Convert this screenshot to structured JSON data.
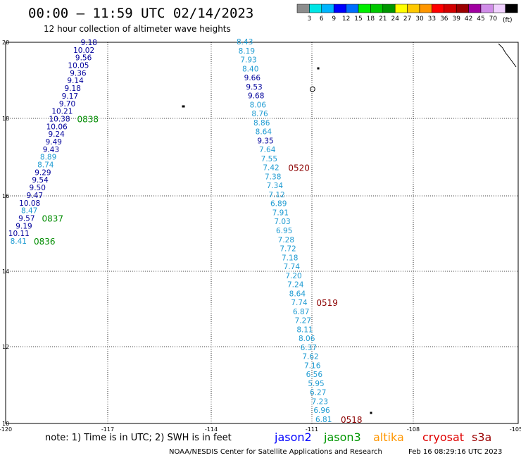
{
  "header": {
    "title": "00:00 – 11:59 UTC 02/14/2023",
    "subtitle": "12 hour collection of altimeter wave heights"
  },
  "legend": {
    "unit": "(ft)",
    "colors": [
      "#8c8c8c",
      "#00e5e5",
      "#00b4ff",
      "#0000ff",
      "#006eff",
      "#00ee00",
      "#00c800",
      "#009600",
      "#ffff00",
      "#ffc800",
      "#ff9600",
      "#ff0000",
      "#d20000",
      "#9b0000",
      "#a000a0",
      "#d08ce8",
      "#f0d0ff",
      "#000000"
    ],
    "labels": [
      "3",
      "6",
      "9",
      "12",
      "15",
      "18",
      "21",
      "24",
      "27",
      "30",
      "33",
      "36",
      "39",
      "42",
      "45",
      "70"
    ]
  },
  "map": {
    "lon_labels": [
      "-120",
      "-117",
      "-114",
      "-111",
      "-108",
      "-105"
    ],
    "lat_labels": [
      "20",
      "18",
      "16",
      "14",
      "12",
      "10"
    ]
  },
  "tracks": [
    {
      "name": "track-west",
      "values": [
        {
          "v": "9.18",
          "c": "#00009b"
        },
        {
          "v": "10.02",
          "c": "#00009b"
        },
        {
          "v": "9.56",
          "c": "#00009b"
        },
        {
          "v": "10.05",
          "c": "#00009b"
        },
        {
          "v": "9.36",
          "c": "#00009b"
        },
        {
          "v": "9.14",
          "c": "#00009b"
        },
        {
          "v": "9.18",
          "c": "#00009b"
        },
        {
          "v": "9.17",
          "c": "#00009b"
        },
        {
          "v": "9.70",
          "c": "#00009b"
        },
        {
          "v": "10.21",
          "c": "#00009b"
        },
        {
          "v": "10.38",
          "c": "#00009b"
        },
        {
          "v": "10.06",
          "c": "#00009b"
        },
        {
          "v": "9.24",
          "c": "#00009b"
        },
        {
          "v": "9.49",
          "c": "#00009b"
        },
        {
          "v": "9.43",
          "c": "#00009b"
        },
        {
          "v": "8.89",
          "c": "#1e9bd2"
        },
        {
          "v": "8.74",
          "c": "#1e9bd2"
        },
        {
          "v": "9.29",
          "c": "#00009b"
        },
        {
          "v": "9.54",
          "c": "#00009b"
        },
        {
          "v": "9.50",
          "c": "#00009b"
        },
        {
          "v": "9.47",
          "c": "#00009b"
        },
        {
          "v": "10.08",
          "c": "#00009b"
        },
        {
          "v": "8.47",
          "c": "#1e9bd2"
        },
        {
          "v": "9.57",
          "c": "#00009b"
        },
        {
          "v": "9.19",
          "c": "#00009b"
        },
        {
          "v": "10.11",
          "c": "#00009b"
        },
        {
          "v": "8.41",
          "c": "#1e9bd2"
        }
      ],
      "times": [
        {
          "t": "0838",
          "i": 10
        },
        {
          "t": "0837",
          "i": 23
        },
        {
          "t": "0836",
          "i": 26
        }
      ]
    },
    {
      "name": "track-east",
      "values": [
        {
          "v": "8.43",
          "c": "#1e9bd2"
        },
        {
          "v": "8.19",
          "c": "#1e9bd2"
        },
        {
          "v": "7.93",
          "c": "#1e9bd2"
        },
        {
          "v": "8.40",
          "c": "#1e9bd2"
        },
        {
          "v": "9.66",
          "c": "#00009b"
        },
        {
          "v": "9.53",
          "c": "#00009b"
        },
        {
          "v": "9.68",
          "c": "#00009b"
        },
        {
          "v": "8.06",
          "c": "#1e9bd2"
        },
        {
          "v": "8.76",
          "c": "#1e9bd2"
        },
        {
          "v": "8.86",
          "c": "#1e9bd2"
        },
        {
          "v": "8.64",
          "c": "#1e9bd2"
        },
        {
          "v": "9.35",
          "c": "#00009b"
        },
        {
          "v": "7.64",
          "c": "#1e9bd2"
        },
        {
          "v": "7.55",
          "c": "#1e9bd2"
        },
        {
          "v": "7.42",
          "c": "#1e9bd2"
        },
        {
          "v": "7.38",
          "c": "#1e9bd2"
        },
        {
          "v": "7.34",
          "c": "#1e9bd2"
        },
        {
          "v": "7.12",
          "c": "#1e9bd2"
        },
        {
          "v": "6.89",
          "c": "#1e9bd2"
        },
        {
          "v": "7.91",
          "c": "#1e9bd2"
        },
        {
          "v": "7.03",
          "c": "#1e9bd2"
        },
        {
          "v": "6.95",
          "c": "#1e9bd2"
        },
        {
          "v": "7.28",
          "c": "#1e9bd2"
        },
        {
          "v": "7.72",
          "c": "#1e9bd2"
        },
        {
          "v": "7.18",
          "c": "#1e9bd2"
        },
        {
          "v": "7.74",
          "c": "#1e9bd2"
        },
        {
          "v": "7.20",
          "c": "#1e9bd2"
        },
        {
          "v": "7.24",
          "c": "#1e9bd2"
        },
        {
          "v": "8.64",
          "c": "#1e9bd2"
        },
        {
          "v": "7.74",
          "c": "#1e9bd2"
        },
        {
          "v": "6.87",
          "c": "#1e9bd2"
        },
        {
          "v": "7.27",
          "c": "#1e9bd2"
        },
        {
          "v": "8.11",
          "c": "#1e9bd2"
        },
        {
          "v": "8.06",
          "c": "#1e9bd2"
        },
        {
          "v": "6.37",
          "c": "#1e9bd2"
        },
        {
          "v": "7.62",
          "c": "#1e9bd2"
        },
        {
          "v": "7.16",
          "c": "#1e9bd2"
        },
        {
          "v": "6.56",
          "c": "#1e9bd2"
        },
        {
          "v": "5.95",
          "c": "#1e9bd2"
        },
        {
          "v": "6.27",
          "c": "#1e9bd2"
        },
        {
          "v": "7.23",
          "c": "#1e9bd2"
        },
        {
          "v": "6.96",
          "c": "#1e9bd2"
        },
        {
          "v": "6.81",
          "c": "#1e9bd2"
        }
      ],
      "times": [
        {
          "t": "0520",
          "i": 14
        },
        {
          "t": "0519",
          "i": 29
        },
        {
          "t": "0518",
          "i": 42
        }
      ]
    }
  ],
  "footer": {
    "note": "note:  1) Time is in UTC;  2) SWH is in feet",
    "satellites": [
      {
        "name": "jason2",
        "color": "#0000ff"
      },
      {
        "name": "jason3",
        "color": "#009600"
      },
      {
        "name": "altika",
        "color": "#ff9600"
      },
      {
        "name": "cryosat",
        "color": "#e00000"
      },
      {
        "name": "s3a",
        "color": "#9b0000"
      }
    ],
    "credit": "NOAA/NESDIS Center for Satellite Applications and Research",
    "timestamp": "Feb 16 08:29:16 UTC 2023"
  },
  "colors": {
    "time_green": "#008c00",
    "time_red": "#8c0000",
    "grid": "#000000"
  }
}
